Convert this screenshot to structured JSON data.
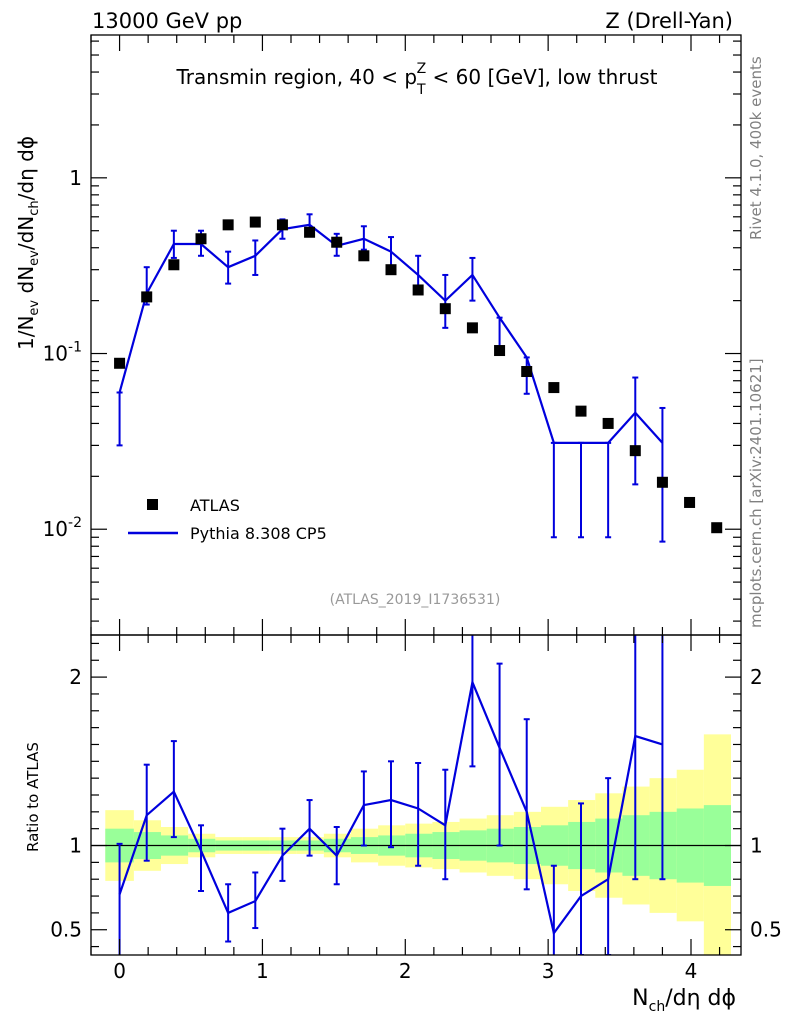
{
  "header": {
    "left": "13000 GeV pp",
    "right": "Z (Drell-Yan)"
  },
  "side_labels": {
    "rivet": "Rivet 4.1.0,  400k events",
    "mcplots": "mcplots.cern.ch [arXiv:2401.10621]"
  },
  "main_plot": {
    "title_prefix": "Transmin region, 40 < p",
    "title_sub": "T",
    "title_sup": "Z",
    "title_suffix": " < 60 [GeV], low thrust",
    "ylabel": "1/N_ev dN_ev/dN_ch/dη dϕ",
    "yscale": "log",
    "ylim": [
      0.0025,
      6.5
    ],
    "ytick_labels": [
      "10^-2",
      "10^-1",
      "1"
    ],
    "reference": "(ATLAS_2019_I1736531)"
  },
  "ratio_plot": {
    "ylabel": "Ratio to ATLAS",
    "ylim": [
      0.35,
      2.25
    ],
    "ytick_labels": [
      "0.5",
      "1",
      "2"
    ]
  },
  "xaxis": {
    "label_main": "N",
    "label_sub": "ch",
    "label_rest": "/dη dϕ",
    "xlim": [
      -0.2,
      4.35
    ],
    "tick_labels": [
      "0",
      "1",
      "2",
      "3",
      "4"
    ]
  },
  "legend": {
    "atlas": "ATLAS",
    "pythia": "Pythia 8.308 CP5"
  },
  "colors": {
    "data": "#000000",
    "mc": "#0000dd",
    "band_inner": "#99ff99",
    "band_outer": "#ffff99"
  },
  "chart_data": {
    "type": "scatter",
    "x": [
      0.0,
      0.19,
      0.38,
      0.57,
      0.76,
      0.95,
      1.14,
      1.33,
      1.52,
      1.71,
      1.9,
      2.09,
      2.28,
      2.47,
      2.66,
      2.85,
      3.04,
      3.23,
      3.42,
      3.61,
      3.8,
      3.99,
      4.18
    ],
    "series": [
      {
        "name": "ATLAS",
        "values": [
          0.088,
          0.21,
          0.32,
          0.45,
          0.54,
          0.56,
          0.54,
          0.49,
          0.43,
          0.36,
          0.3,
          0.23,
          0.18,
          0.14,
          0.104,
          0.079,
          0.064,
          0.047,
          0.04,
          0.028,
          0.0185,
          0.0142,
          0.0102
        ]
      },
      {
        "name": "Pythia 8.308 CP5",
        "x": [
          0.0,
          0.19,
          0.38,
          0.57,
          0.76,
          0.95,
          1.14,
          1.33,
          1.52,
          1.71,
          1.9,
          2.09,
          2.28,
          2.47,
          2.66,
          2.85,
          3.04,
          3.23,
          3.42,
          3.61,
          3.8
        ],
        "values": [
          0.06,
          0.22,
          0.42,
          0.42,
          0.31,
          0.36,
          0.51,
          0.54,
          0.41,
          0.45,
          0.38,
          0.28,
          0.2,
          0.28,
          0.16,
          0.095,
          0.031,
          0.031,
          0.031,
          0.046,
          0.031
        ],
        "err_low": [
          0.03,
          0.03,
          0.07,
          0.06,
          0.06,
          0.08,
          0.06,
          0.06,
          0.05,
          0.06,
          0.07,
          0.06,
          0.06,
          0.08,
          0.055,
          0.036,
          0.022,
          0.022,
          0.022,
          0.028,
          0.0225
        ],
        "err_high": [
          0.0,
          0.09,
          0.08,
          0.08,
          0.07,
          0.08,
          0.07,
          0.08,
          0.07,
          0.08,
          0.08,
          0.08,
          0.08,
          0.07,
          0.0,
          0.0,
          0.0,
          0.0,
          0.0,
          0.027,
          0.018
        ]
      }
    ],
    "ratio": {
      "name": "Pythia 8.308 CP5 / ATLAS",
      "x": [
        0.0,
        0.19,
        0.38,
        0.57,
        0.76,
        0.95,
        1.14,
        1.33,
        1.52,
        1.71,
        1.9,
        2.09,
        2.28,
        2.47,
        2.66,
        2.85,
        3.04,
        3.23,
        3.42,
        3.61,
        3.8
      ],
      "values": [
        0.71,
        1.18,
        1.32,
        0.97,
        0.6,
        0.67,
        0.94,
        1.1,
        0.94,
        1.24,
        1.27,
        1.22,
        1.12,
        1.97,
        1.58,
        1.2,
        0.48,
        0.7,
        0.8,
        1.65,
        1.6
      ],
      "err_low": [
        0.4,
        0.27,
        0.27,
        0.24,
        0.17,
        0.16,
        0.15,
        0.16,
        0.17,
        0.24,
        0.28,
        0.34,
        0.32,
        0.5,
        0.58,
        0.46,
        0.2,
        0.35,
        0.45,
        0.85,
        0.8
      ],
      "err_high": [
        0.3,
        0.3,
        0.3,
        0.15,
        0.17,
        0.17,
        0.16,
        0.17,
        0.17,
        0.2,
        0.23,
        0.27,
        0.33,
        0.4,
        0.5,
        0.55,
        0.4,
        0.55,
        0.6,
        0.7,
        0.8
      ],
      "band_x_edges": [
        -0.1,
        0.1,
        0.29,
        0.48,
        0.67,
        0.86,
        1.05,
        1.24,
        1.43,
        1.62,
        1.81,
        2.0,
        2.19,
        2.38,
        2.57,
        2.76,
        2.95,
        3.14,
        3.33,
        3.52,
        3.71,
        3.9,
        4.09,
        4.28
      ],
      "band_inner_low": [
        0.9,
        0.92,
        0.94,
        0.96,
        0.97,
        0.97,
        0.97,
        0.97,
        0.96,
        0.95,
        0.94,
        0.93,
        0.92,
        0.91,
        0.9,
        0.89,
        0.88,
        0.86,
        0.84,
        0.82,
        0.8,
        0.78,
        0.76
      ],
      "band_inner_high": [
        1.1,
        1.08,
        1.06,
        1.04,
        1.03,
        1.03,
        1.03,
        1.03,
        1.04,
        1.05,
        1.06,
        1.07,
        1.08,
        1.09,
        1.1,
        1.11,
        1.12,
        1.14,
        1.16,
        1.18,
        1.2,
        1.22,
        1.24
      ],
      "band_outer_low": [
        0.79,
        0.85,
        0.89,
        0.93,
        0.95,
        0.95,
        0.95,
        0.95,
        0.93,
        0.9,
        0.88,
        0.87,
        0.86,
        0.84,
        0.82,
        0.8,
        0.77,
        0.73,
        0.69,
        0.65,
        0.6,
        0.55,
        0.34
      ],
      "band_outer_high": [
        1.21,
        1.15,
        1.11,
        1.07,
        1.05,
        1.05,
        1.05,
        1.05,
        1.07,
        1.1,
        1.12,
        1.13,
        1.14,
        1.16,
        1.18,
        1.2,
        1.23,
        1.27,
        1.31,
        1.35,
        1.4,
        1.45,
        1.66
      ]
    }
  }
}
